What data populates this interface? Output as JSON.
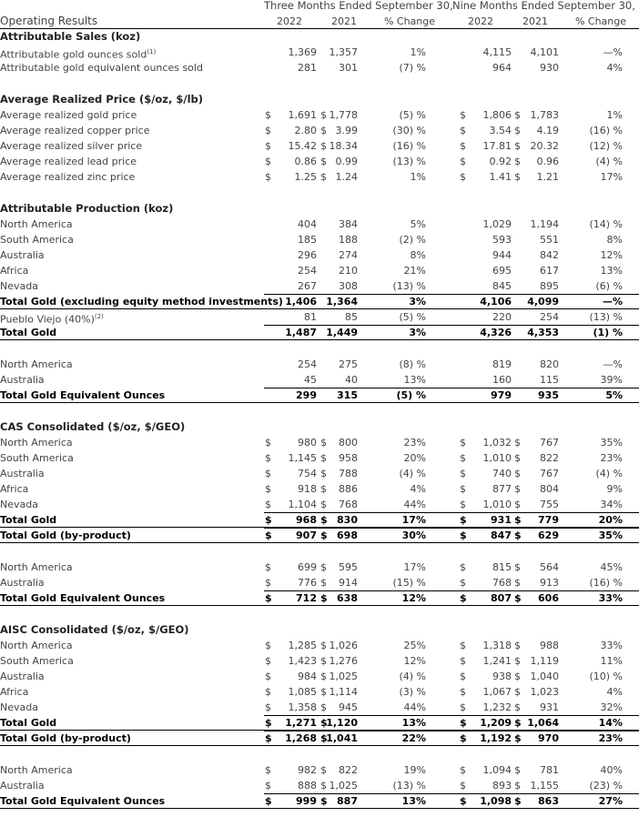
{
  "header": {
    "title": "Operating Results",
    "groups": [
      "Three Months Ended September 30,",
      "Nine Months Ended September 30,"
    ],
    "columns": [
      "2022",
      "2021",
      "% Change",
      "2022",
      "2021",
      "% Change"
    ]
  },
  "sections": [
    {
      "heading": "Attributable Sales (koz)",
      "rows": [
        {
          "label": "Attributable gold ounces sold",
          "note": "(1)",
          "values": [
            "1,369",
            "1,357",
            "1%",
            "4,115",
            "4,101",
            "—%"
          ]
        },
        {
          "label": "Attributable gold equivalent ounces sold",
          "values": [
            "281",
            "301",
            "(7) %",
            "964",
            "930",
            "4%"
          ]
        }
      ]
    },
    {
      "heading": "Average Realized Price ($/oz, $/lb)",
      "rows": [
        {
          "label": "Average realized gold price",
          "dollars": [
            "$",
            "$",
            "$",
            "$"
          ],
          "values": [
            "1,691",
            "1,778",
            "(5) %",
            "1,806",
            "1,783",
            "1%"
          ]
        },
        {
          "label": "Average realized copper price",
          "dollars": [
            "$",
            "$",
            "$",
            "$"
          ],
          "values": [
            "2.80",
            "3.99",
            "(30) %",
            "3.54",
            "4.19",
            "(16) %"
          ]
        },
        {
          "label": "Average realized silver price",
          "dollars": [
            "$",
            "$",
            "$",
            "$"
          ],
          "values": [
            "15.42",
            "18.34",
            "(16) %",
            "17.81",
            "20.32",
            "(12) %"
          ]
        },
        {
          "label": "Average realized lead price",
          "dollars": [
            "$",
            "$",
            "$",
            "$"
          ],
          "values": [
            "0.86",
            "0.99",
            "(13) %",
            "0.92",
            "0.96",
            "(4) %"
          ]
        },
        {
          "label": "Average realized zinc price",
          "dollars": [
            "$",
            "$",
            "$",
            "$"
          ],
          "values": [
            "1.25",
            "1.24",
            "1%",
            "1.41",
            "1.21",
            "17%"
          ]
        }
      ]
    },
    {
      "heading": "Attributable Production (koz)",
      "rows": [
        {
          "label": "North America",
          "values": [
            "404",
            "384",
            "5%",
            "1,029",
            "1,194",
            "(14) %"
          ]
        },
        {
          "label": "South America",
          "values": [
            "185",
            "188",
            "(2) %",
            "593",
            "551",
            "8%"
          ]
        },
        {
          "label": "Australia",
          "values": [
            "296",
            "274",
            "8%",
            "944",
            "842",
            "12%"
          ]
        },
        {
          "label": "Africa",
          "values": [
            "254",
            "210",
            "21%",
            "695",
            "617",
            "13%"
          ]
        },
        {
          "label": "Nevada",
          "values": [
            "267",
            "308",
            "(13) %",
            "845",
            "895",
            "(6) %"
          ]
        },
        {
          "label": "Total Gold (excluding equity method investments)",
          "bold": true,
          "values": [
            "1,406",
            "1,364",
            "3%",
            "4,106",
            "4,099",
            "—%"
          ]
        },
        {
          "label": "Pueblo Viejo (40%)",
          "note": "(2)",
          "values": [
            "81",
            "85",
            "(5) %",
            "220",
            "254",
            "(13) %"
          ]
        },
        {
          "label": "Total Gold",
          "bold": true,
          "values": [
            "1,487",
            "1,449",
            "3%",
            "4,326",
            "4,353",
            "(1) %"
          ]
        }
      ]
    },
    {
      "rows": [
        {
          "label": "North America",
          "values": [
            "254",
            "275",
            "(8) %",
            "819",
            "820",
            "—%"
          ]
        },
        {
          "label": "Australia",
          "values": [
            "45",
            "40",
            "13%",
            "160",
            "115",
            "39%"
          ]
        },
        {
          "label": "Total Gold Equivalent Ounces",
          "bold": true,
          "values": [
            "299",
            "315",
            "(5) %",
            "979",
            "935",
            "5%"
          ]
        }
      ]
    },
    {
      "heading": "CAS Consolidated ($/oz, $/GEO)",
      "rows": [
        {
          "label": "North America",
          "dollars": [
            "$",
            "$",
            "$",
            "$"
          ],
          "values": [
            "980",
            "800",
            "23%",
            "1,032",
            "767",
            "35%"
          ]
        },
        {
          "label": "South America",
          "dollars": [
            "$",
            "$",
            "$",
            "$"
          ],
          "values": [
            "1,145",
            "958",
            "20%",
            "1,010",
            "822",
            "23%"
          ]
        },
        {
          "label": "Australia",
          "dollars": [
            "$",
            "$",
            "$",
            "$"
          ],
          "values": [
            "754",
            "788",
            "(4) %",
            "740",
            "767",
            "(4) %"
          ]
        },
        {
          "label": "Africa",
          "dollars": [
            "$",
            "$",
            "$",
            "$"
          ],
          "values": [
            "918",
            "886",
            "4%",
            "877",
            "804",
            "9%"
          ]
        },
        {
          "label": "Nevada",
          "dollars": [
            "$",
            "$",
            "$",
            "$"
          ],
          "values": [
            "1,104",
            "768",
            "44%",
            "1,010",
            "755",
            "34%"
          ]
        },
        {
          "label": "Total Gold",
          "bold": true,
          "dollars": [
            "$",
            "$",
            "$",
            "$"
          ],
          "values": [
            "968",
            "830",
            "17%",
            "931",
            "779",
            "20%"
          ]
        },
        {
          "label": "Total Gold (by-product)",
          "bold": true,
          "dollars": [
            "$",
            "$",
            "$",
            "$"
          ],
          "values": [
            "907",
            "698",
            "30%",
            "847",
            "629",
            "35%"
          ]
        }
      ]
    },
    {
      "rows": [
        {
          "label": "North America",
          "dollars": [
            "$",
            "$",
            "$",
            "$"
          ],
          "values": [
            "699",
            "595",
            "17%",
            "815",
            "564",
            "45%"
          ]
        },
        {
          "label": "Australia",
          "dollars": [
            "$",
            "$",
            "$",
            "$"
          ],
          "values": [
            "776",
            "914",
            "(15) %",
            "768",
            "913",
            "(16) %"
          ]
        },
        {
          "label": "Total Gold Equivalent Ounces",
          "bold": true,
          "dollars": [
            "$",
            "$",
            "$",
            "$"
          ],
          "values": [
            "712",
            "638",
            "12%",
            "807",
            "606",
            "33%"
          ]
        }
      ]
    },
    {
      "heading": "AISC Consolidated ($/oz, $/GEO)",
      "rows": [
        {
          "label": "North America",
          "dollars": [
            "$",
            "$",
            "$",
            "$"
          ],
          "values": [
            "1,285",
            "1,026",
            "25%",
            "1,318",
            "988",
            "33%"
          ]
        },
        {
          "label": "South America",
          "dollars": [
            "$",
            "$",
            "$",
            "$"
          ],
          "values": [
            "1,423",
            "1,276",
            "12%",
            "1,241",
            "1,119",
            "11%"
          ]
        },
        {
          "label": "Australia",
          "dollars": [
            "$",
            "$",
            "$",
            "$"
          ],
          "values": [
            "984",
            "1,025",
            "(4) %",
            "938",
            "1,040",
            "(10) %"
          ]
        },
        {
          "label": "Africa",
          "dollars": [
            "$",
            "$",
            "$",
            "$"
          ],
          "values": [
            "1,085",
            "1,114",
            "(3) %",
            "1,067",
            "1,023",
            "4%"
          ]
        },
        {
          "label": "Nevada",
          "dollars": [
            "$",
            "$",
            "$",
            "$"
          ],
          "values": [
            "1,358",
            "945",
            "44%",
            "1,232",
            "931",
            "32%"
          ]
        },
        {
          "label": "Total Gold",
          "bold": true,
          "dollars": [
            "$",
            "$",
            "$",
            "$"
          ],
          "values": [
            "1,271",
            "1,120",
            "13%",
            "1,209",
            "1,064",
            "14%"
          ]
        },
        {
          "label": "Total Gold (by-product)",
          "bold": true,
          "dollars": [
            "$",
            "$",
            "$",
            "$"
          ],
          "values": [
            "1,268",
            "1,041",
            "22%",
            "1,192",
            "970",
            "23%"
          ]
        }
      ]
    },
    {
      "rows": [
        {
          "label": "North America",
          "dollars": [
            "$",
            "$",
            "$",
            "$"
          ],
          "values": [
            "982",
            "822",
            "19%",
            "1,094",
            "781",
            "40%"
          ]
        },
        {
          "label": "Australia",
          "dollars": [
            "$",
            "$",
            "$",
            "$"
          ],
          "values": [
            "888",
            "1,025",
            "(13) %",
            "893",
            "1,155",
            "(23) %"
          ]
        },
        {
          "label": "Total Gold Equivalent Ounces",
          "bold": true,
          "dollars": [
            "$",
            "$",
            "$",
            "$"
          ],
          "values": [
            "999",
            "887",
            "13%",
            "1,098",
            "863",
            "27%"
          ]
        }
      ]
    }
  ]
}
